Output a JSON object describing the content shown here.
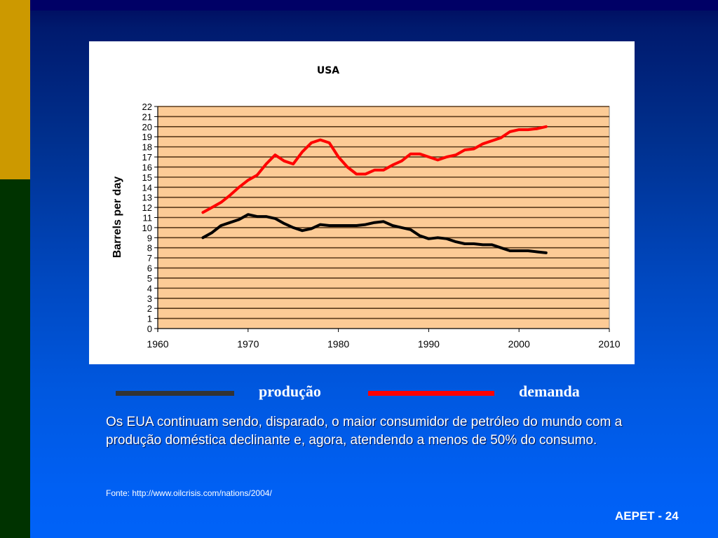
{
  "slide": {
    "body_text": "Os EUA continuam sendo, disparado, o maior consumidor de petróleo do mundo com a produção doméstica declinante e, agora, atendendo a menos de 50% do consumo.",
    "source": "Fonte: http://www.oilcrisis.com/nations/2004/",
    "footer": "AEPET - 24",
    "colors": {
      "gold": "#CC9900",
      "green": "#003300",
      "plot_bg": "#FCCB96"
    }
  },
  "legend": [
    {
      "label": "produção",
      "color": "#333333"
    },
    {
      "label": "demanda",
      "color": "#FF0000"
    }
  ],
  "chart_data": {
    "type": "line",
    "title": "USA",
    "xlabel": "",
    "ylabel": "Barrels per day",
    "xlim": [
      1960,
      2010
    ],
    "ylim": [
      0,
      22
    ],
    "x_ticks": [
      "1960",
      "1970",
      "1980",
      "1990",
      "2000",
      "2010"
    ],
    "y_ticks": [
      "0",
      "1",
      "2",
      "3",
      "4",
      "5",
      "6",
      "7",
      "8",
      "9",
      "10",
      "11",
      "12",
      "13",
      "14",
      "15",
      "16",
      "17",
      "18",
      "19",
      "20",
      "21",
      "22"
    ],
    "grid": true,
    "x": [
      1965,
      1966,
      1967,
      1968,
      1969,
      1970,
      1971,
      1972,
      1973,
      1974,
      1975,
      1976,
      1977,
      1978,
      1979,
      1980,
      1981,
      1982,
      1983,
      1984,
      1985,
      1986,
      1987,
      1988,
      1989,
      1990,
      1991,
      1992,
      1993,
      1994,
      1995,
      1996,
      1997,
      1998,
      1999,
      2000,
      2001,
      2002,
      2003
    ],
    "series": [
      {
        "name": "demanda",
        "color": "#FF0000",
        "values": [
          11.5,
          12.0,
          12.5,
          13.2,
          14.0,
          14.7,
          15.2,
          16.3,
          17.2,
          16.6,
          16.3,
          17.5,
          18.4,
          18.7,
          18.4,
          17.0,
          16.0,
          15.3,
          15.3,
          15.7,
          15.7,
          16.2,
          16.6,
          17.3,
          17.3,
          17.0,
          16.7,
          17.0,
          17.2,
          17.7,
          17.8,
          18.3,
          18.6,
          18.9,
          19.5,
          19.7,
          19.7,
          19.8,
          20.0
        ]
      },
      {
        "name": "produção",
        "color": "#000000",
        "values": [
          9.0,
          9.5,
          10.2,
          10.5,
          10.8,
          11.3,
          11.1,
          11.1,
          10.9,
          10.4,
          10.0,
          9.7,
          9.9,
          10.3,
          10.2,
          10.2,
          10.2,
          10.2,
          10.3,
          10.5,
          10.6,
          10.2,
          10.0,
          9.8,
          9.2,
          8.9,
          9.0,
          8.9,
          8.6,
          8.4,
          8.4,
          8.3,
          8.3,
          8.0,
          7.7,
          7.7,
          7.7,
          7.6,
          7.5
        ]
      }
    ]
  }
}
